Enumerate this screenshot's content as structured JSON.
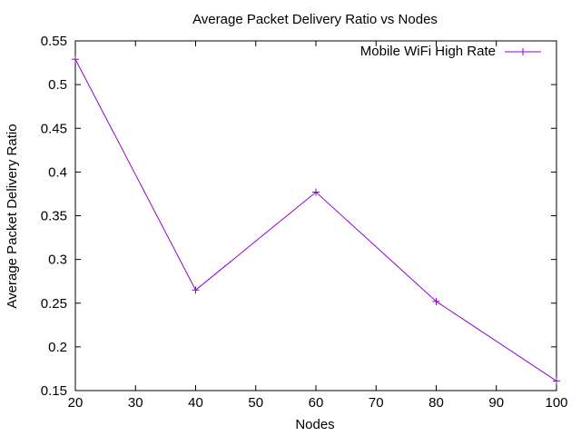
{
  "chart_data": {
    "type": "line",
    "title": "Average Packet Delivery Ratio vs Nodes",
    "xlabel": "Nodes",
    "ylabel": "Average Packet Delivery Ratio",
    "xlim": [
      20,
      100
    ],
    "ylim": [
      0.15,
      0.55
    ],
    "x_ticks": [
      "20",
      "30",
      "40",
      "50",
      "60",
      "70",
      "80",
      "90",
      "100"
    ],
    "y_ticks": [
      "0.15",
      "0.2",
      "0.25",
      "0.3",
      "0.35",
      "0.4",
      "0.45",
      "0.5",
      "0.55"
    ],
    "grid": false,
    "legend_position": "top-right",
    "x": [
      20,
      40,
      60,
      80,
      100
    ],
    "series": [
      {
        "name": "Mobile WiFi High Rate",
        "values": [
          0.529,
          0.265,
          0.377,
          0.252,
          0.161
        ],
        "color": "#9400d3"
      }
    ]
  }
}
